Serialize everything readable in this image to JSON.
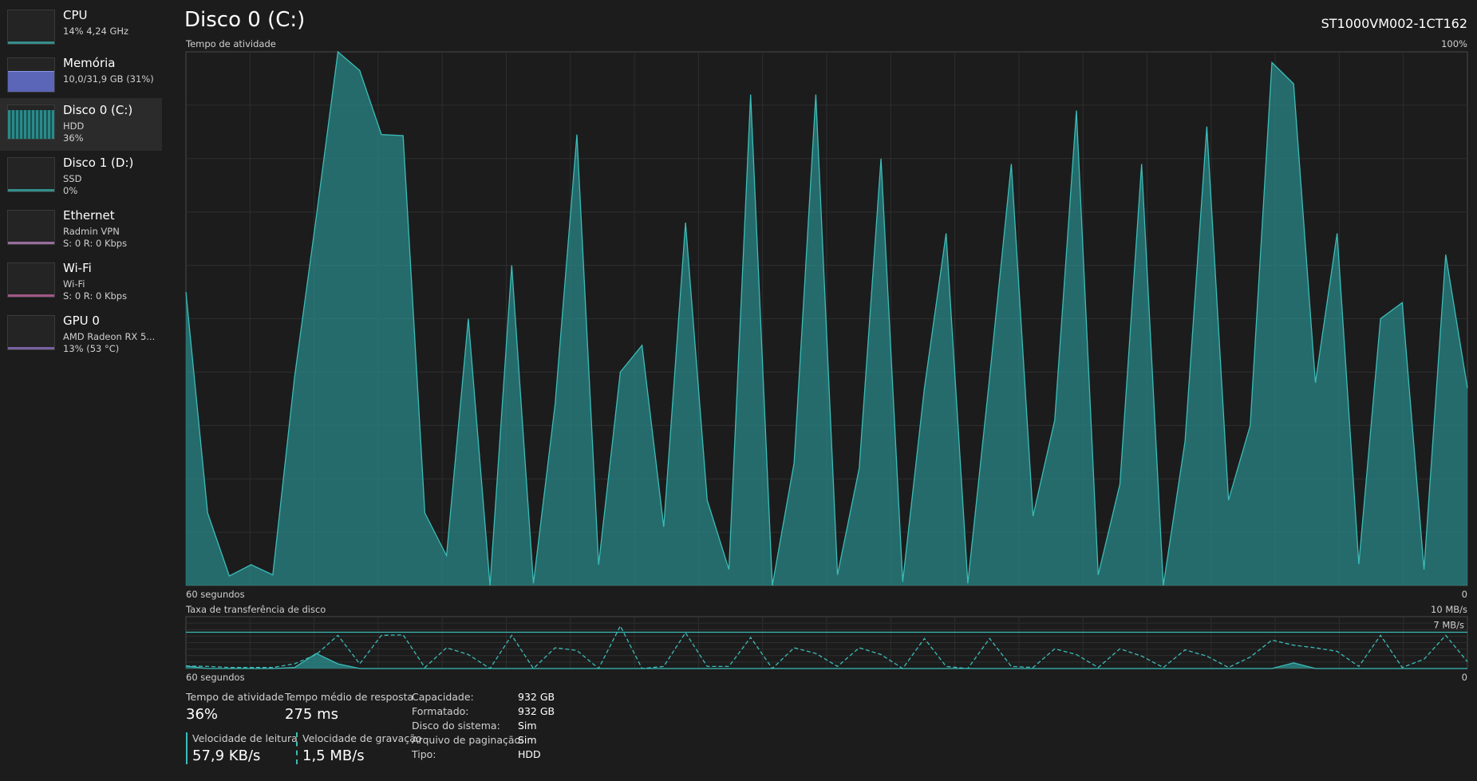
{
  "sidebar": [
    {
      "name": "CPU",
      "lines": [
        "14% 4,24 GHz"
      ]
    },
    {
      "name": "Memória",
      "lines": [
        "10,0/31,9 GB (31%)"
      ]
    },
    {
      "name": "Disco 0 (C:)",
      "lines": [
        "HDD",
        "36%"
      ]
    },
    {
      "name": "Disco 1 (D:)",
      "lines": [
        "SSD",
        "0%"
      ]
    },
    {
      "name": "Ethernet",
      "lines": [
        "Radmin VPN",
        "S: 0 R: 0 Kbps"
      ]
    },
    {
      "name": "Wi-Fi",
      "lines": [
        "Wi-Fi",
        "S: 0 R: 0 Kbps"
      ]
    },
    {
      "name": "GPU 0",
      "lines": [
        "AMD Radeon RX 5...",
        "13% (53 °C)"
      ]
    }
  ],
  "header": {
    "title": "Disco 0 (C:)",
    "model": "ST1000VM002-1CT162"
  },
  "activity_chart": {
    "type": "area",
    "label": "Tempo de atividade",
    "ymax_label": "100%",
    "ylim": [
      0,
      100
    ],
    "x_label_left": "60 segundos",
    "x_label_right": "0",
    "color": "#3bbcb8",
    "values": [
      55,
      13.6,
      1.8,
      3.9,
      2,
      39,
      69,
      100,
      96.5,
      84.5,
      84.3,
      13.6,
      5.6,
      50,
      0,
      60,
      0.4,
      34,
      84.5,
      3.9,
      40,
      45,
      11,
      68,
      16,
      3,
      92,
      0,
      23,
      92,
      2,
      22,
      80,
      0.7,
      37,
      66,
      0.4,
      39,
      79,
      13,
      31,
      89,
      2,
      19,
      79,
      0,
      27,
      86,
      16,
      30,
      98,
      94,
      38,
      66,
      4,
      50,
      53,
      3,
      62,
      37
    ]
  },
  "transfer_chart": {
    "type": "line",
    "label": "Taxa de transferência de disco",
    "ymax_label": "10 MB/s",
    "ylim": [
      0,
      10
    ],
    "ref_line": {
      "value": 7,
      "label": "7 MB/s"
    },
    "x_label_left": "60 segundos",
    "x_label_right": "0",
    "color": "#3bbcb8",
    "series": [
      {
        "values": [
          0.5,
          0,
          0,
          0,
          0,
          0.2,
          2.9,
          0.9,
          0,
          0,
          0,
          0,
          0,
          0,
          0,
          0,
          0,
          0,
          0,
          0,
          0,
          0,
          0,
          0,
          0,
          0,
          0,
          0,
          0,
          0,
          0,
          0,
          0,
          0,
          0,
          0,
          0,
          0,
          0,
          0,
          0,
          0,
          0,
          0,
          0,
          0,
          0,
          0,
          0,
          0,
          0,
          1.1,
          0,
          0,
          0,
          0,
          0,
          0,
          0,
          0
        ]
      },
      {
        "values": [
          0.5,
          0.4,
          0.2,
          0.2,
          0.2,
          0.9,
          2.7,
          6.4,
          0.9,
          6.4,
          6.5,
          0.2,
          4,
          2.7,
          0,
          6.4,
          0,
          4,
          3.5,
          0,
          8.2,
          0,
          0.4,
          6.9,
          0.4,
          0.4,
          6,
          0,
          4,
          2.9,
          0.4,
          4,
          2.7,
          0,
          5.8,
          0.4,
          0,
          5.8,
          0.4,
          0.2,
          3.8,
          2.7,
          0.2,
          3.8,
          2.4,
          0.2,
          3.6,
          2.4,
          0.2,
          2.2,
          5.5,
          4.5,
          4,
          3.3,
          0.4,
          6.4,
          0.2,
          1.8,
          6.4,
          1.3
        ]
      }
    ]
  },
  "stats": [
    {
      "label": "Tempo de atividade",
      "value": "36%"
    },
    {
      "label": "Tempo médio de resposta",
      "value": "275 ms"
    },
    {
      "label": "Velocidade de leitura",
      "value": "57,9 KB/s"
    },
    {
      "label": "Velocidade de gravação",
      "value": "1,5 MB/s"
    }
  ],
  "details": [
    {
      "label": "Capacidade:",
      "value": "932 GB"
    },
    {
      "label": "Formatado:",
      "value": "932 GB"
    },
    {
      "label": "Disco do sistema:",
      "value": "Sim"
    },
    {
      "label": "Arquivo de paginação:",
      "value": "Sim"
    },
    {
      "label": "Tipo:",
      "value": "HDD"
    }
  ]
}
